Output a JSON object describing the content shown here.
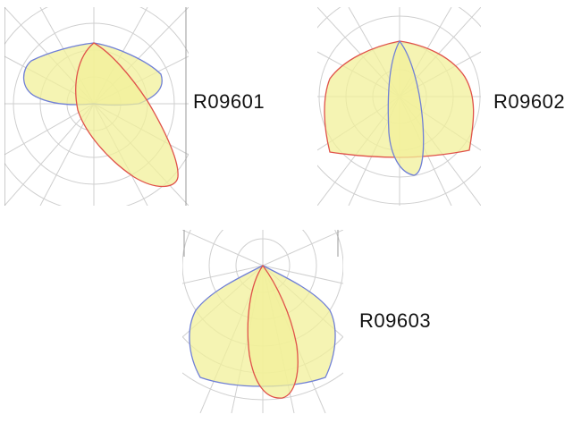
{
  "diagrams": [
    {
      "label": "R09601",
      "fill": "#f2f09a",
      "c0_color": "#6f7fd6",
      "c90_color": "#e0524a"
    },
    {
      "label": "R09602",
      "fill": "#f2f09a",
      "c0_color": "#6f7fd6",
      "c90_color": "#e0524a"
    },
    {
      "label": "R09603",
      "fill": "#f2f09a",
      "c0_color": "#6f7fd6",
      "c90_color": "#e0524a"
    }
  ]
}
